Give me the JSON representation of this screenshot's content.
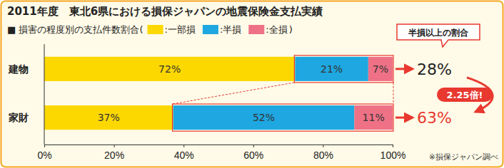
{
  "chart_data": {
    "type": "bar",
    "title": "2011年度　東北6県における損保ジャパンの地震保険金支払実績",
    "subtitle": "■ 損害の程度別の支払件数割合(",
    "orientation": "horizontal",
    "stacked": true,
    "data_labels": true,
    "grid": false,
    "categories": [
      "建物",
      "家財"
    ],
    "series": [
      {
        "name": ":一部損",
        "color": "#fcd800",
        "values": [
          72,
          37
        ],
        "value_labels": [
          "72%",
          "37%"
        ]
      },
      {
        "name": ":半損",
        "color": "#1ea7e1",
        "values": [
          21,
          52
        ],
        "value_labels": [
          "21%",
          "52%"
        ]
      },
      {
        "name": ":全損",
        "color": "#ee7186",
        "values": [
          7,
          11
        ],
        "value_labels": [
          "7%",
          "11%"
        ]
      }
    ],
    "xlim": [
      0,
      100
    ],
    "xticks": [
      {
        "value": 0,
        "label": "0%"
      },
      {
        "value": 20,
        "label": "20%"
      },
      {
        "value": 40,
        "label": "40%"
      },
      {
        "value": 60,
        "label": "60%"
      },
      {
        "value": 80,
        "label": "80%"
      },
      {
        "value": 100,
        "label": "100%"
      }
    ],
    "annotations": [
      ")",
      "半損以上の割合",
      "28%",
      "63%",
      "2.25倍!",
      "※損保ジャパン調べ"
    ]
  }
}
